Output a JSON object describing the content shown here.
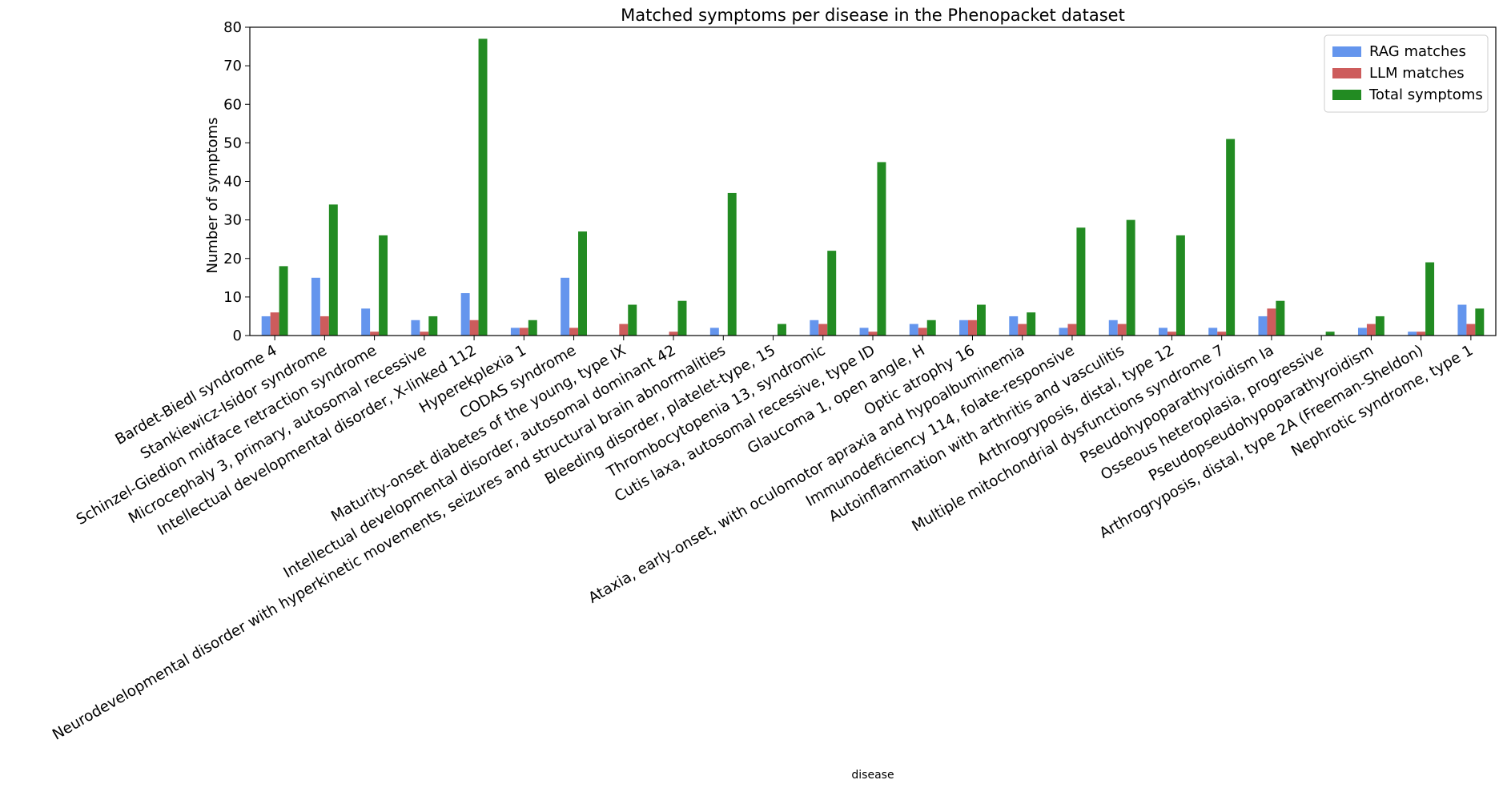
{
  "chart_data": {
    "type": "bar",
    "title": "Matched symptoms per disease in the Phenopacket dataset",
    "xlabel": "disease",
    "ylabel": "Number of symptoms",
    "ylim": [
      0,
      80
    ],
    "yticks": [
      0,
      10,
      20,
      30,
      40,
      50,
      60,
      70,
      80
    ],
    "grid": false,
    "legend_position": "top-right",
    "categories": [
      "Bardet-Biedl syndrome 4",
      "Stankiewicz-Isidor syndrome",
      "Schinzel-Giedion midface retraction syndrome",
      "Microcephaly 3, primary, autosomal recessive",
      "Intellectual developmental disorder, X-linked 112",
      "Hyperekplexia 1",
      "CODAS syndrome",
      "Maturity-onset diabetes of the young, type IX",
      "Intellectual developmental disorder, autosomal dominant 42",
      "Neurodevelopmental disorder with hyperkinetic movements, seizures and structural brain abnormalities",
      "Bleeding disorder, platelet-type, 15",
      "Thrombocytopenia 13, syndromic",
      "Cutis laxa, autosomal recessive, type ID",
      "Glaucoma 1, open angle, H",
      "Optic atrophy 16",
      "Ataxia, early-onset, with oculomotor apraxia and hypoalbuminemia",
      "Immunodeficiency 114, folate-responsive",
      "Autoinflammation with arthritis and vasculitis",
      "Arthrogryposis, distal, type 12",
      "Multiple mitochondrial dysfunctions syndrome 7",
      "Pseudohypoparathyroidism Ia",
      "Osseous heteroplasia, progressive",
      "Pseudopseudohypoparathyroidism",
      "Arthrogryposis, distal, type 2A (Freeman-Sheldon)",
      "Nephrotic syndrome, type 1"
    ],
    "series": [
      {
        "name": "RAG matches",
        "color": "#6495ed",
        "values": [
          5,
          15,
          7,
          4,
          11,
          2,
          15,
          0,
          0,
          2,
          0,
          4,
          2,
          3,
          4,
          5,
          2,
          4,
          2,
          2,
          5,
          0,
          2,
          1,
          8
        ]
      },
      {
        "name": "LLM matches",
        "color": "#cd5c5c",
        "values": [
          6,
          5,
          1,
          1,
          4,
          2,
          2,
          3,
          1,
          0,
          0,
          3,
          1,
          2,
          4,
          3,
          3,
          3,
          1,
          1,
          7,
          0,
          3,
          1,
          3
        ]
      },
      {
        "name": "Total symptoms",
        "color": "#228b22",
        "values": [
          18,
          34,
          26,
          5,
          77,
          4,
          27,
          8,
          9,
          37,
          3,
          22,
          45,
          4,
          8,
          6,
          28,
          30,
          26,
          51,
          9,
          1,
          5,
          19,
          7
        ]
      }
    ]
  }
}
